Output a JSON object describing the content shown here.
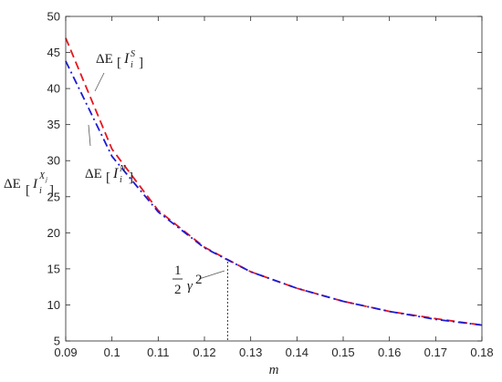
{
  "chart_data": {
    "type": "line",
    "xlabel": "m",
    "ylabel": "ΔE[I_i^{X_j}]",
    "xlim": [
      0.09,
      0.18
    ],
    "ylim": [
      5,
      50
    ],
    "x_ticks": [
      "0.09",
      "0.1",
      "0.11",
      "0.12",
      "0.13",
      "0.14",
      "0.15",
      "0.16",
      "0.17",
      "0.18"
    ],
    "y_ticks": [
      "5",
      "10",
      "15",
      "20",
      "25",
      "30",
      "35",
      "40",
      "45",
      "50"
    ],
    "grid": false,
    "x": [
      0.09,
      0.1,
      0.11,
      0.12,
      0.13,
      0.14,
      0.15,
      0.16,
      0.17,
      0.18
    ],
    "series": [
      {
        "label": "ΔE[I_i^S]",
        "color": "#e8141c",
        "style": "dashed",
        "values": [
          47.0,
          31.6,
          23.1,
          18.0,
          14.6,
          12.3,
          10.5,
          9.1,
          8.1,
          7.2
        ]
      },
      {
        "label": "ΔE[I_i^N]",
        "color": "#1b1bd6",
        "style": "dash-dot",
        "values": [
          43.8,
          30.6,
          22.9,
          17.9,
          14.6,
          12.3,
          10.5,
          9.1,
          8.0,
          7.2
        ]
      }
    ],
    "annotations": [
      {
        "text": "1/2 γ²",
        "x": 0.125,
        "y": 16.0,
        "marker": "dotted vertical line at x = 0.125"
      }
    ]
  }
}
